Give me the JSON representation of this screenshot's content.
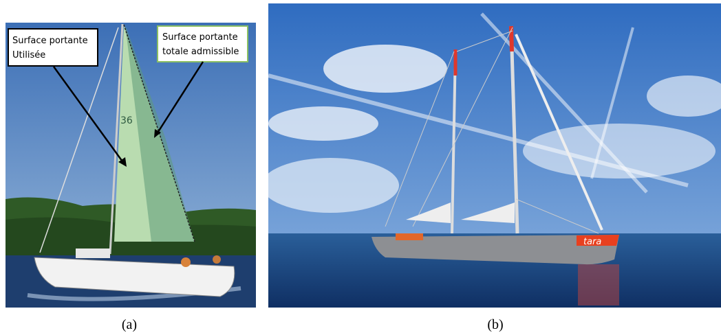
{
  "panels": [
    {
      "caption": "(a)",
      "labels": [
        {
          "lines": [
            "Surface portante",
            "Utilisée"
          ]
        },
        {
          "lines": [
            "Surface portante",
            "totale admissible"
          ]
        }
      ],
      "sail_number": "36"
    },
    {
      "caption": "(b)",
      "hull_text": "tara"
    }
  ]
}
